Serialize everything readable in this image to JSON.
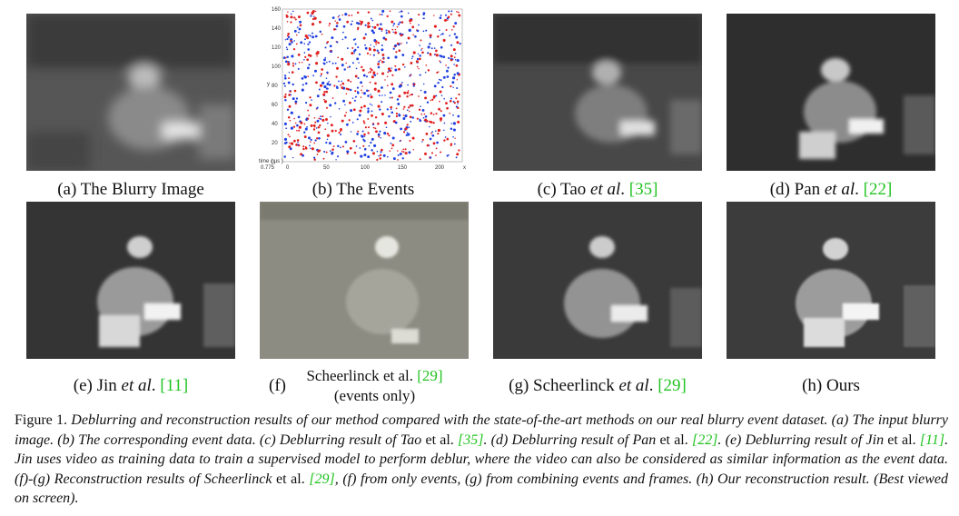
{
  "panels": [
    {
      "id": "a",
      "label": "(a) The Blurry Image",
      "tone": "#555555"
    },
    {
      "id": "b",
      "label": "(b) The Events"
    },
    {
      "id": "c",
      "pre": "(c) Tao ",
      "it": "et al",
      "post": ". ",
      "ref": "[35]",
      "tone": "#4a4a4a"
    },
    {
      "id": "d",
      "pre": "(d) Pan ",
      "it": "et al",
      "post": ". ",
      "ref": "[22]",
      "tone": "#3c3c3c"
    },
    {
      "id": "e",
      "pre": "(e) Jin ",
      "it": "et al",
      "post": ". ",
      "ref": "[11]",
      "tone": "#3a3a3a"
    },
    {
      "id": "f",
      "letter": "(f)",
      "line1_pre": "Scheerlinck ",
      "line1_it": "et al",
      "line1_post": ". ",
      "ref": "[29]",
      "line2": "(events only)",
      "tone": "#8a8a7e"
    },
    {
      "id": "g",
      "pre": "(g) Scheerlinck ",
      "it": "et al",
      "post": ". ",
      "ref": "[29]",
      "tone": "#3e3e3e"
    },
    {
      "id": "h",
      "label": "(h) Ours",
      "tone": "#444444"
    }
  ],
  "events_plot": {
    "y_ticks": [
      "160",
      "140",
      "120",
      "100",
      "80",
      "60",
      "40",
      "20",
      "0"
    ],
    "x_ticks": [
      "0",
      "50",
      "100",
      "150",
      "200"
    ],
    "ylabel": "y",
    "xlabel": "x",
    "zlabel": "time ( µs )",
    "z_tick": "0.775",
    "colors": {
      "positive": "#e02020",
      "negative": "#2040e0"
    }
  },
  "caption": {
    "fig": "Figure 1.",
    "s1": " Deblurring and reconstruction results of our method compared with the state-of-the-art methods on our real blurry event dataset. (a) The input blurry image. (b) The corresponding event data. (c) Deblurring result of Tao ",
    "s1_nm": "et al.",
    "s1_ref": "[35]",
    "s2": ". (d) Deblurring result of Pan ",
    "s2_nm": "et al.",
    "s2_ref": "[22]",
    "s3": ". (e) Deblurring result of Jin ",
    "s3_nm": "et al.",
    "s3_ref": "[11]",
    "s4": ". Jin uses video as training data to train a supervised model to perform deblur, where the video can also be considered as similar information as the event data. (f)-(g) Reconstruction results of Scheerlinck ",
    "s4_nm": "et al.",
    "s4_ref": "[29]",
    "s5": ", (f) from only events, (g) from combining events and frames. (h) Our reconstruction result. (Best viewed on screen)."
  }
}
